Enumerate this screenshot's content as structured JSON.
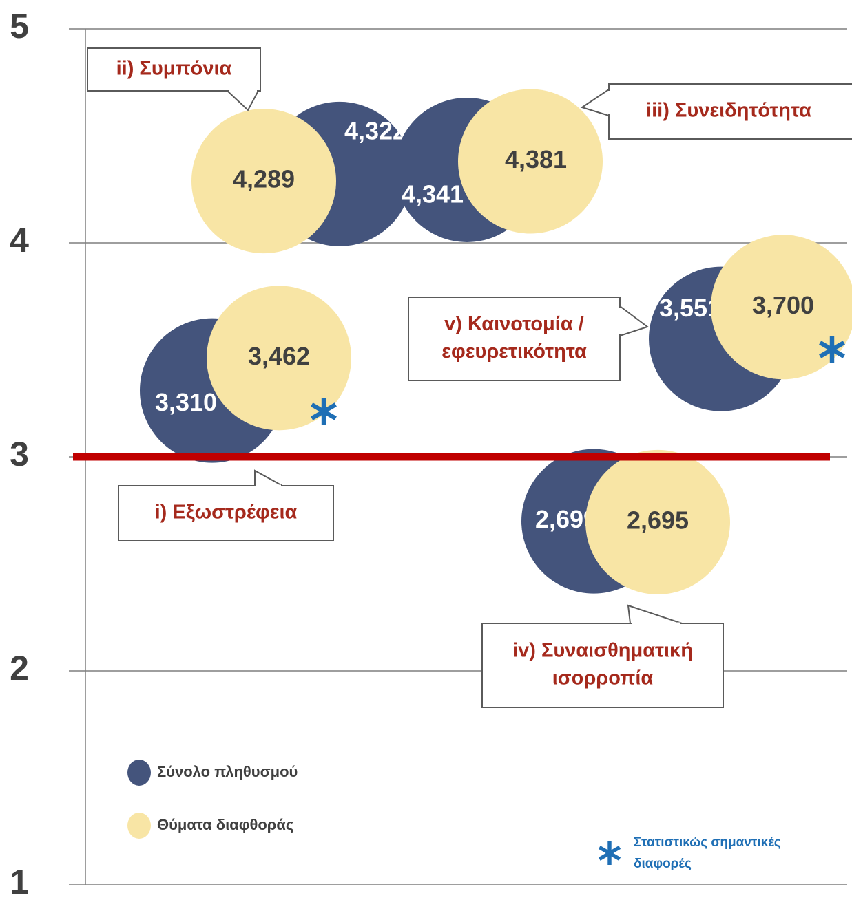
{
  "chart_data": {
    "type": "bubble",
    "categories": [
      [
        "i)  Εξωστρέφεια"
      ],
      [
        "ii) Συμπόνια"
      ],
      [
        "iii) Συνειδητότητα"
      ],
      [
        "iv) Συναισθηματική",
        "ισορροπία"
      ],
      [
        "v) Καινοτομία /",
        "εφευρετικότητα"
      ]
    ],
    "series": [
      {
        "name": "Σύνολο πληθυσμού",
        "color": "#44547c",
        "values": [
          3.31,
          4.322,
          4.341,
          2.699,
          3.551
        ],
        "value_labels": [
          "3,310",
          "4,322",
          "4,341",
          "2,699",
          "3,551"
        ]
      },
      {
        "name": "Θύματα διαφθοράς",
        "color": "#f8e5a5",
        "values": [
          3.462,
          4.289,
          4.381,
          2.695,
          3.7
        ],
        "value_labels": [
          "3,462",
          "4,289",
          "4,381",
          "2,695",
          "3,700"
        ]
      }
    ],
    "significant": [
      true,
      false,
      false,
      false,
      true
    ],
    "significance_legend": [
      "Στατιστικώς σημαντικές",
      "διαφορές"
    ],
    "significance_color": "#1f6fb5",
    "reference_line": {
      "value": 3,
      "color": "#c00000"
    },
    "ylim": [
      1,
      5
    ],
    "yticks": [
      1,
      2,
      3,
      4,
      5
    ],
    "grid": true
  }
}
